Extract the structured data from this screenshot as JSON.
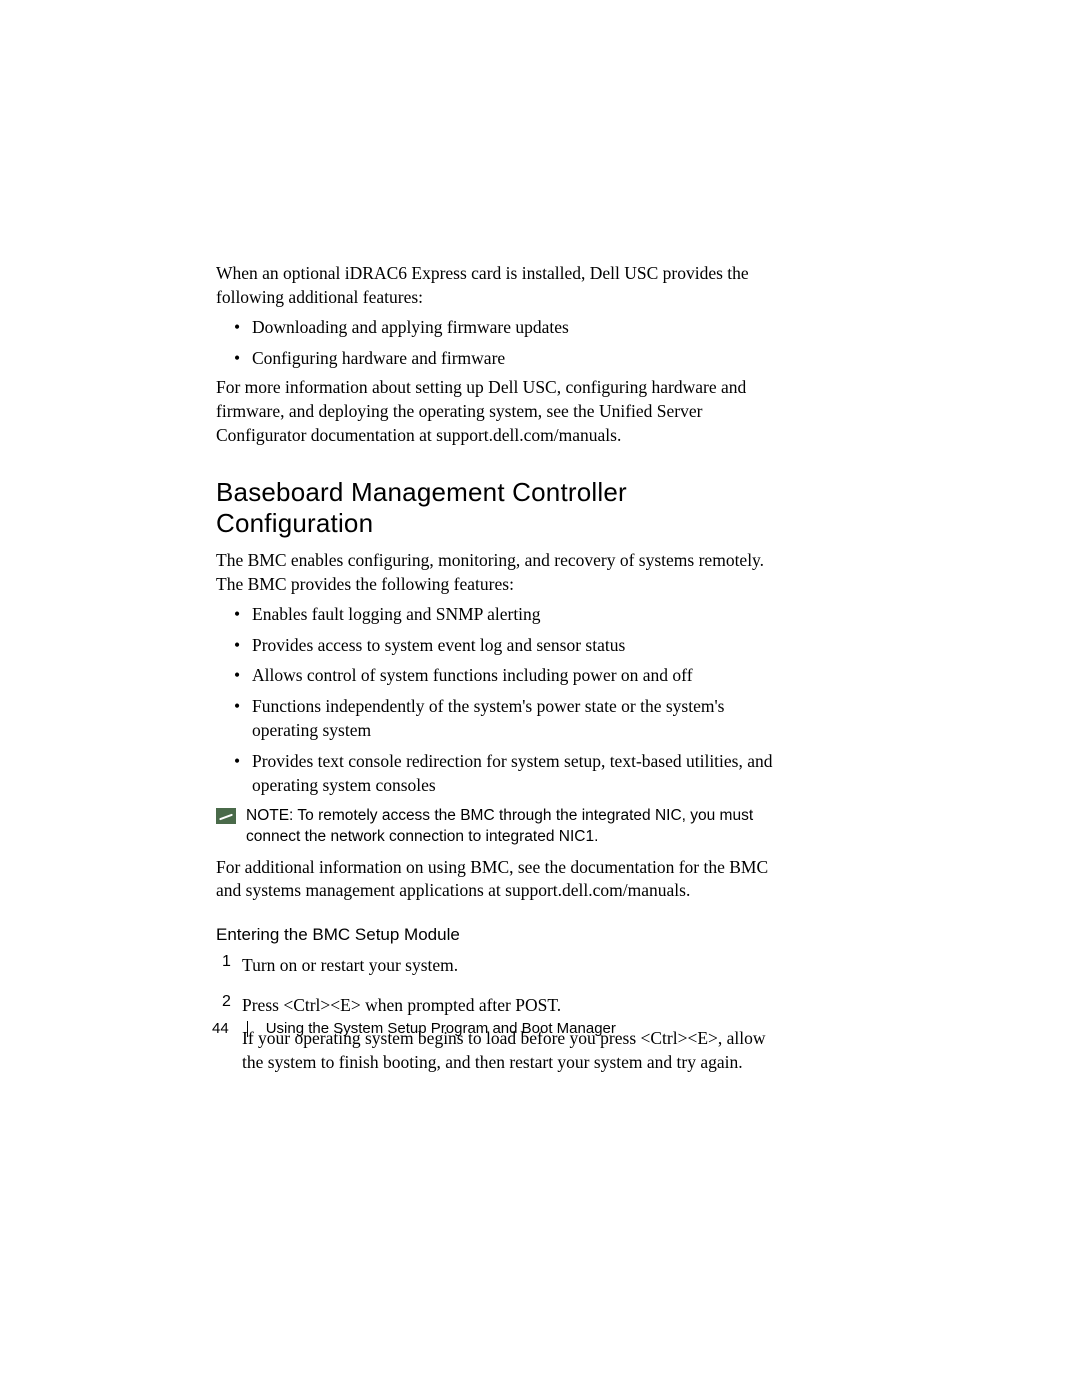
{
  "intro": {
    "p1": "When an optional iDRAC6 Express card is installed, Dell USC provides the following additional features:",
    "bullets": [
      "Downloading and applying firmware updates",
      "Configuring hardware and firmware"
    ],
    "p2": "For more information about setting up Dell USC, configuring hardware and firmware, and deploying the operating system, see the Unified Server Configurator documentation at support.dell.com/manuals."
  },
  "section": {
    "heading": "Baseboard Management Controller Configuration",
    "p1": "The BMC enables configuring, monitoring, and recovery of systems remotely. The BMC provides the following features:",
    "bullets": [
      "Enables fault logging and SNMP alerting",
      "Provides access to system event log and sensor status",
      "Allows control of system functions including power on and off",
      "Functions independently of the system's power state or the system's operating system",
      "Provides text console redirection for system setup, text-based utilities, and operating system consoles"
    ],
    "note_label": "NOTE:",
    "note_text": " To remotely access the BMC through the integrated NIC, you must connect the network connection to integrated NIC1.",
    "p2": "For additional information on using BMC, see the documentation for the BMC and systems management applications at support.dell.com/manuals."
  },
  "subsection": {
    "heading": "Entering the BMC Setup Module",
    "items": [
      {
        "num": "1",
        "lines": [
          "Turn on or restart your system."
        ]
      },
      {
        "num": "2",
        "lines": [
          "Press <Ctrl><E> when prompted after POST.",
          "If your operating system begins to load before you press <Ctrl><E>, allow the system to finish booting, and then restart your system and try again."
        ]
      }
    ]
  },
  "footer": {
    "page_number": "44",
    "chapter": "Using the System Setup Program and Boot Manager"
  },
  "style": {
    "body_font_size_pt": 13,
    "heading_font_size_pt": 19,
    "subheading_font_size_pt": 13,
    "note_font_size_pt": 11.5,
    "footer_font_size_pt": 11,
    "text_color": "#000000",
    "background_color": "#ffffff",
    "note_icon_color": "#4a6a4a",
    "body_font_family": "serif",
    "heading_font_family": "sans-serif"
  }
}
